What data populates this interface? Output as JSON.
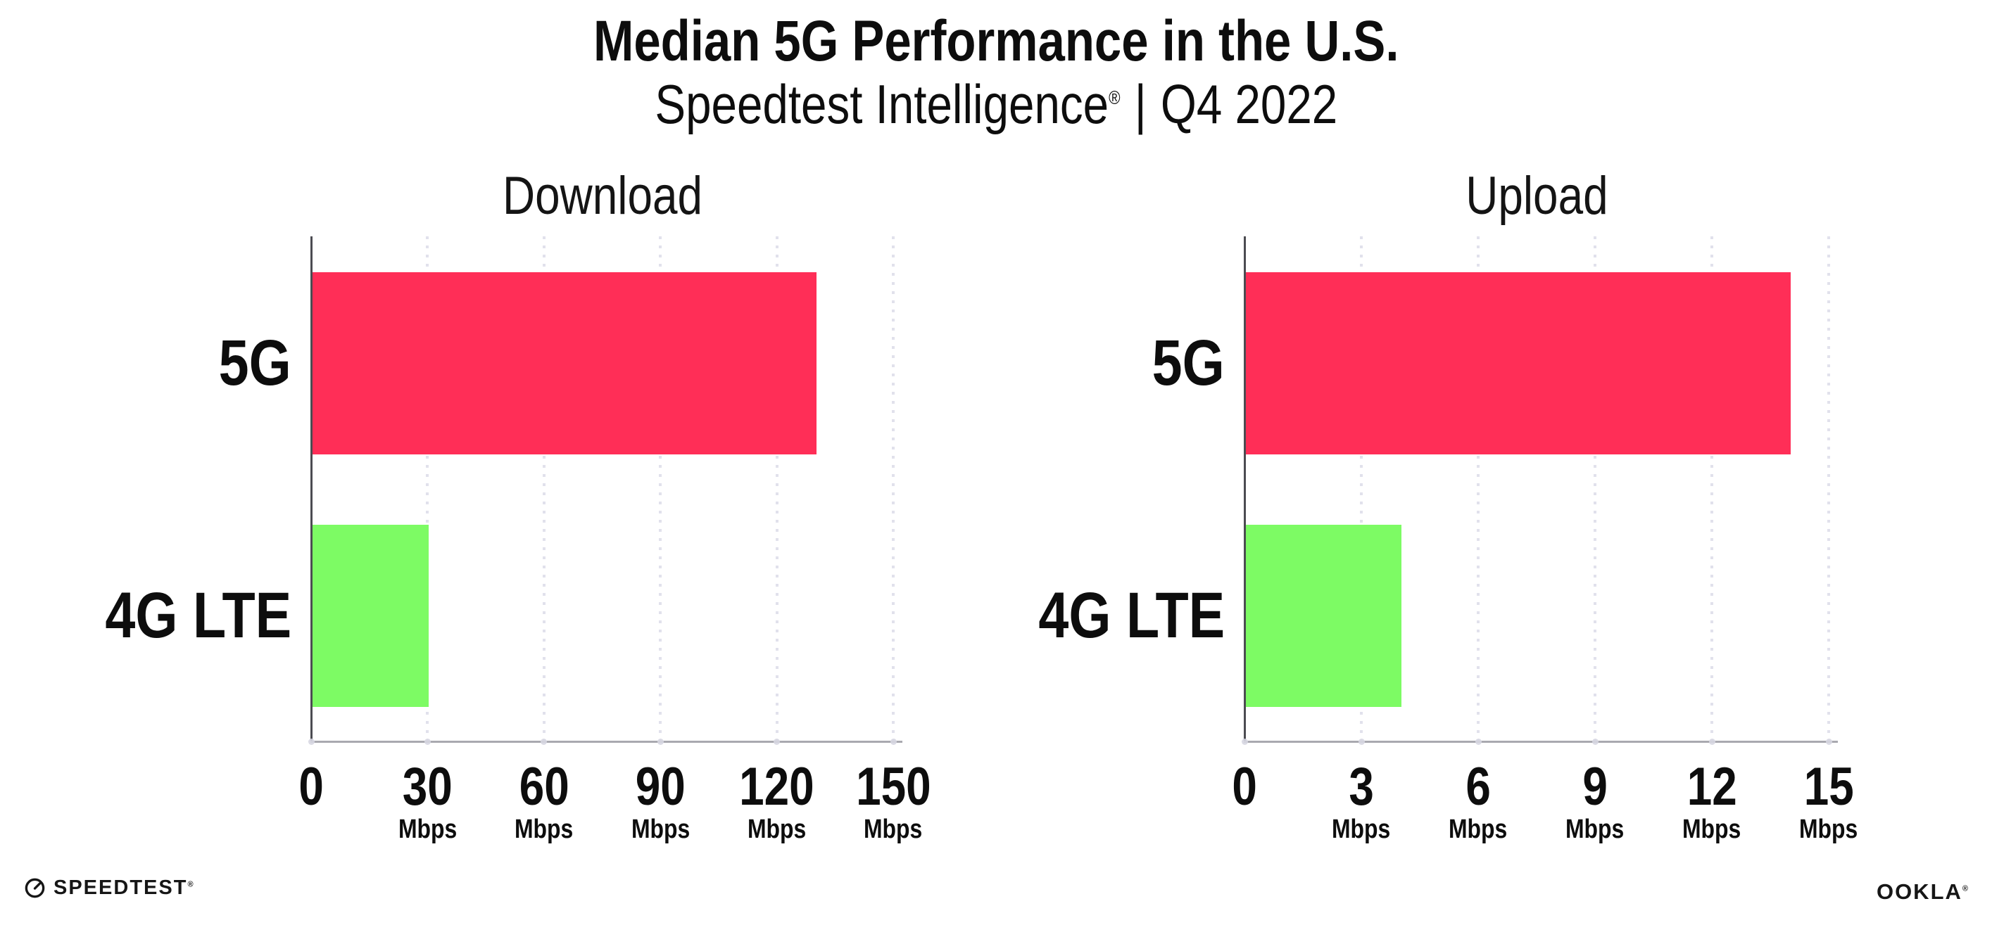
{
  "header": {
    "title": "Median 5G Performance in the U.S.",
    "subtitle": {
      "brand": "Speedtest Intelligence",
      "reg": "®",
      "separator": "|",
      "period": "Q4 2022"
    }
  },
  "chart_data": {
    "type": "bar",
    "orientation": "horizontal",
    "unit": "Mbps",
    "categories": [
      "5G",
      "4G LTE"
    ],
    "bar_colors": {
      "5G": "#ff2e57",
      "4G LTE": "#7dfb64"
    },
    "grid": "dotted-vertical",
    "legend_position": "none",
    "charts": [
      {
        "title": "Download",
        "values": [
          130,
          30
        ],
        "xlim": [
          0,
          150
        ],
        "ticks": [
          0,
          30,
          60,
          90,
          120,
          150
        ],
        "tick_unit": "Mbps"
      },
      {
        "title": "Upload",
        "values": [
          14,
          4
        ],
        "xlim": [
          0,
          15
        ],
        "ticks": [
          0,
          3,
          6,
          9,
          12,
          15
        ],
        "tick_unit": "Mbps"
      }
    ]
  },
  "footer": {
    "speedtest_logo_text": "SPEEDTEST",
    "speedtest_reg": "®",
    "ookla_logo_text": "OOKLA",
    "ookla_reg": "®"
  },
  "colors": {
    "background": "#ffffff",
    "text": "#0d0d0d",
    "bar_5g": "#ff2e57",
    "bar_4g_lte": "#7dfb64",
    "axis_y_line": "#4c4c52",
    "axis_x_line": "#a9a9b0",
    "gridline_dots": "#e1e1ec"
  }
}
